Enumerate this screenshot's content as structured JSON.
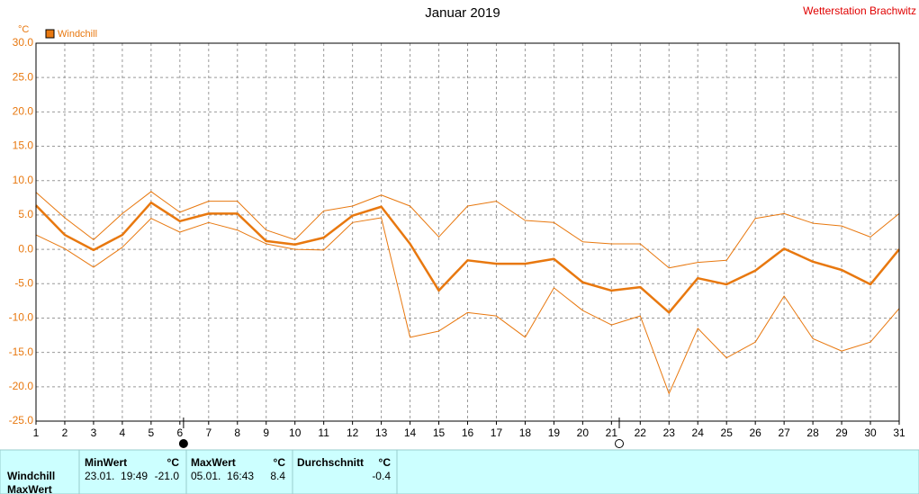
{
  "chart_data": {
    "type": "line",
    "title": "Januar 2019",
    "station": "Wetterstation Brachwitz",
    "y_unit": "°C",
    "x": [
      1,
      2,
      3,
      4,
      5,
      6,
      7,
      8,
      9,
      10,
      11,
      12,
      13,
      14,
      15,
      16,
      17,
      18,
      19,
      20,
      21,
      22,
      23,
      24,
      25,
      26,
      27,
      28,
      29,
      30,
      31
    ],
    "xlim": [
      1,
      31
    ],
    "xticks": [
      1,
      2,
      3,
      4,
      5,
      6,
      7,
      8,
      9,
      10,
      11,
      12,
      13,
      14,
      15,
      16,
      17,
      18,
      19,
      20,
      21,
      22,
      23,
      24,
      25,
      26,
      27,
      28,
      29,
      30,
      31
    ],
    "ylim": [
      -25,
      30
    ],
    "yticks": [
      {
        "value": 30,
        "label": "30.0"
      },
      {
        "value": 25,
        "label": "25.0"
      },
      {
        "value": 20,
        "label": "20.0"
      },
      {
        "value": 15,
        "label": "15.0"
      },
      {
        "value": 10,
        "label": "10.0"
      },
      {
        "value": 5,
        "label": "5.0"
      },
      {
        "value": 0,
        "label": "0.0"
      },
      {
        "value": -5,
        "label": "-5.0"
      },
      {
        "value": -10,
        "label": "-10.0"
      },
      {
        "value": -15,
        "label": "-15.0"
      },
      {
        "value": -20,
        "label": "-20.0"
      },
      {
        "value": -25,
        "label": "-25.0"
      }
    ],
    "grid": true,
    "series": [
      {
        "name": "Windchill",
        "color": "#e8780f",
        "width": 2.5,
        "values": [
          6.4,
          2.1,
          -0.1,
          2.1,
          6.8,
          4.1,
          5.2,
          5.2,
          1.2,
          0.7,
          1.7,
          4.9,
          6.2,
          0.8,
          -6.0,
          -1.6,
          -2.1,
          -2.1,
          -1.4,
          -4.8,
          -6.0,
          -5.5,
          -9.2,
          -4.2,
          -5.1,
          -3.1,
          0.1,
          -1.8,
          -3.0,
          -5.1,
          0.0
        ]
      },
      {
        "color": "#e8780f",
        "width": 1,
        "values": [
          8.3,
          4.6,
          1.4,
          5.2,
          8.4,
          5.4,
          7.0,
          7.0,
          2.8,
          1.4,
          5.6,
          6.3,
          7.9,
          6.3,
          1.8,
          6.3,
          7.0,
          4.2,
          3.9,
          1.1,
          0.8,
          0.8,
          -2.7,
          -1.9,
          -1.6,
          4.5,
          5.2,
          3.8,
          3.4,
          1.8,
          5.2
        ]
      },
      {
        "color": "#e8780f",
        "width": 1,
        "values": [
          2.1,
          0.1,
          -2.6,
          0.3,
          4.5,
          2.5,
          3.9,
          2.8,
          0.8,
          0.0,
          -0.1,
          3.9,
          4.6,
          -12.8,
          -11.9,
          -9.2,
          -9.7,
          -12.8,
          -5.6,
          -8.9,
          -11.0,
          -9.7,
          -21.0,
          -11.5,
          -15.8,
          -13.5,
          -6.8,
          -13.0,
          -14.8,
          -13.5,
          -8.6
        ]
      }
    ]
  },
  "table": {
    "columns": [
      {
        "name": "MinWert",
        "unit": "°C"
      },
      {
        "name": "MaxWert",
        "unit": "°C"
      },
      {
        "name": "Durchschnitt",
        "unit": "°C"
      }
    ],
    "rows": [
      {
        "label": "Windchill",
        "min_time": "23.01.  19:49",
        "min": "-21.0",
        "max_time": "05.01.  16:43",
        "max": "8.4",
        "avg": "-0.4"
      }
    ],
    "next_row_label": "MaxWert"
  }
}
